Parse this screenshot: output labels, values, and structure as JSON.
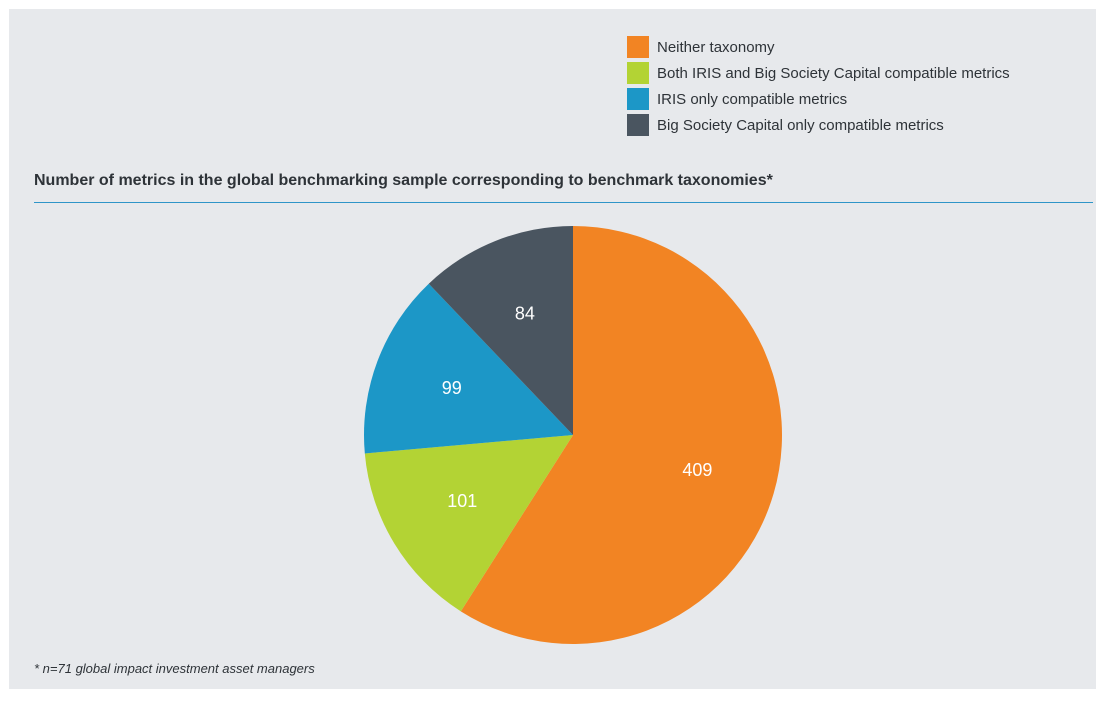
{
  "chart_data": {
    "type": "pie",
    "title": "Number of metrics in the global benchmarking sample corresponding to benchmark taxonomies*",
    "slices": [
      {
        "name": "Neither taxonomy",
        "value": 409,
        "color": "#f28423"
      },
      {
        "name": "Both IRIS and Big Society Capital compatible metrics",
        "value": 101,
        "color": "#b3d334"
      },
      {
        "name": "IRIS only compatible metrics",
        "value": 99,
        "color": "#1c97c7"
      },
      {
        "name": "Big Society Capital only compatible metrics",
        "value": 84,
        "color": "#4a5560"
      }
    ],
    "legend_position": "top-right",
    "start_angle_deg": 0,
    "direction": "clockwise",
    "footnote": "* n=71 global impact investment asset managers"
  }
}
